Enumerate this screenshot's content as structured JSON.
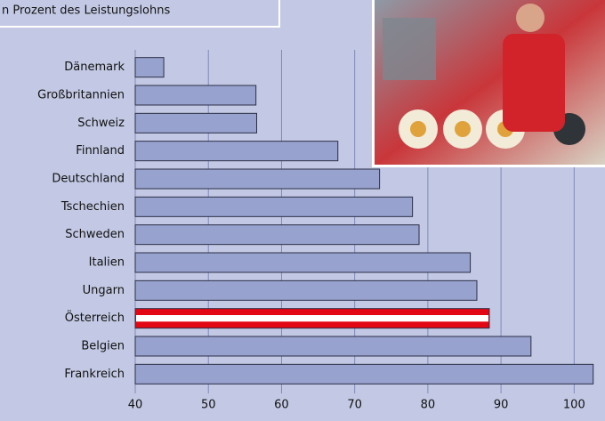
{
  "chart_data": {
    "type": "hbar",
    "title": "n Prozent des Leistungslohns",
    "categories": [
      "Dänemark",
      "Großbritannien",
      "Schweiz",
      "Finnland",
      "Deutschland",
      "Tschechien",
      "Schweden",
      "Italien",
      "Ungarn",
      "Österreich",
      "Belgien",
      "Frankreich"
    ],
    "values": [
      43.9,
      56.5,
      56.6,
      67.7,
      73.4,
      77.9,
      78.8,
      85.8,
      86.7,
      88.4,
      94.1,
      102.6
    ],
    "colors": [
      "#98a2cf",
      "#98a2cf",
      "#98a2cf",
      "#98a2cf",
      "#98a2cf",
      "#98a2cf",
      "#98a2cf",
      "#98a2cf",
      "#98a2cf",
      "#e30613",
      "#98a2cf",
      "#98a2cf"
    ],
    "xlim": [
      40,
      103
    ],
    "xticks": [
      40,
      50,
      60,
      70,
      80,
      90,
      100
    ],
    "grid": true
  }
}
